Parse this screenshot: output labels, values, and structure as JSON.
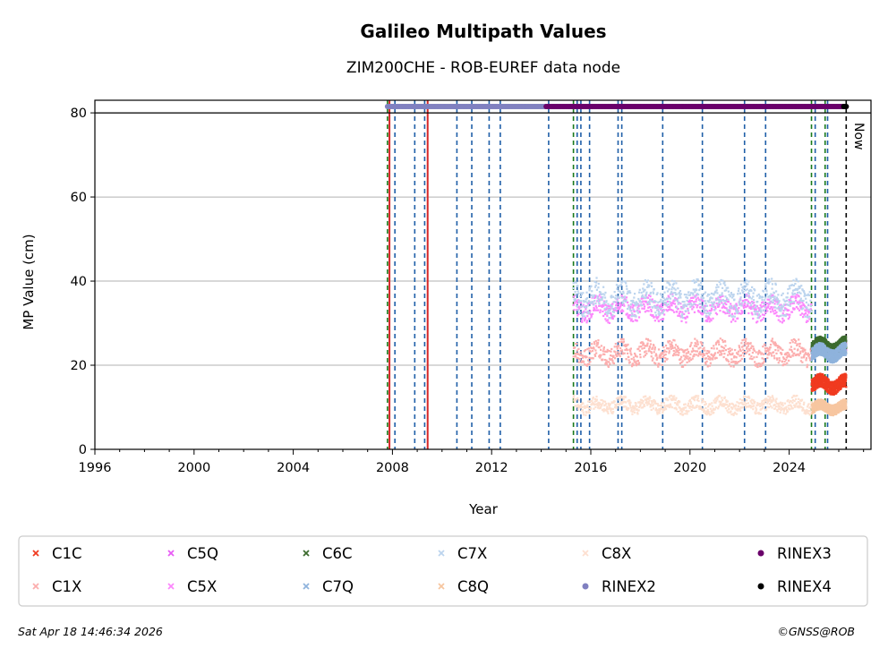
{
  "chart_data": {
    "type": "scatter",
    "title": "Galileo Multipath Values",
    "subtitle": "ZIM200CHE - ROB-EUREF data node",
    "xlabel": "Year",
    "ylabel": "MP Value (cm)",
    "xlim": [
      1996,
      2027.3
    ],
    "ylim": [
      0,
      83
    ],
    "x_ticks": [
      1996,
      2000,
      2004,
      2008,
      2012,
      2016,
      2020,
      2024
    ],
    "y_ticks": [
      0,
      20,
      40,
      60,
      80
    ],
    "grid": "y-major",
    "now_label": "Now",
    "now_year": 2026.3,
    "series": [
      {
        "name": "C1C",
        "marker": "x",
        "color": "#f03b20",
        "x_range": [
          2024.9,
          2026.3
        ],
        "mean": 15.5,
        "spread": 1.6
      },
      {
        "name": "C1X",
        "marker": "x",
        "color": "#fcaeae",
        "x_range": [
          2015.3,
          2024.9
        ],
        "mean": 23.0,
        "spread": 2.2
      },
      {
        "name": "C5Q",
        "marker": "x",
        "color": "#e85cf5",
        "x_range": [
          2024.9,
          2026.3
        ],
        "mean": 24.0,
        "spread": 1.2
      },
      {
        "name": "C5X",
        "marker": "x",
        "color": "#fc87fc",
        "x_range": [
          2015.3,
          2024.9
        ],
        "mean": 33.5,
        "spread": 2.2
      },
      {
        "name": "C6C",
        "marker": "x",
        "color": "#3c6b2e",
        "x_range": [
          2024.9,
          2026.3
        ],
        "mean": 24.5,
        "spread": 1.5
      },
      {
        "name": "C7Q",
        "marker": "x",
        "color": "#8fb3dc",
        "x_range": [
          2024.9,
          2026.3
        ],
        "mean": 23.0,
        "spread": 1.5
      },
      {
        "name": "C7X",
        "marker": "x",
        "color": "#bcd4ee",
        "x_range": [
          2015.3,
          2024.9
        ],
        "mean": 36.0,
        "spread": 3.0
      },
      {
        "name": "C8Q",
        "marker": "x",
        "color": "#f7c6a0",
        "x_range": [
          2024.9,
          2026.3
        ],
        "mean": 10.0,
        "spread": 1.2
      },
      {
        "name": "C8X",
        "marker": "x",
        "color": "#fde0d0",
        "x_range": [
          2015.3,
          2024.9
        ],
        "mean": 10.5,
        "spread": 1.5
      },
      {
        "name": "RINEX2",
        "marker": "o",
        "color": "#8080c0",
        "x_range": [
          2007.8,
          2014.2
        ],
        "y": 81.5
      },
      {
        "name": "RINEX3",
        "marker": "o",
        "color": "#6a006a",
        "x_range": [
          2014.2,
          2026.3
        ],
        "y": 81.5
      },
      {
        "name": "RINEX4",
        "marker": "o",
        "color": "#000000",
        "x_range": [
          2026.2,
          2026.3
        ],
        "y": 81.5
      }
    ],
    "hline": {
      "y": 80,
      "color": "#000000"
    },
    "events": [
      {
        "x": 2007.8,
        "color": "#1a7a1a",
        "style": "dashed"
      },
      {
        "x": 2007.88,
        "color": "#d62728",
        "style": "solid"
      },
      {
        "x": 2008.1,
        "color": "#1f5fa8",
        "style": "dashed"
      },
      {
        "x": 2008.9,
        "color": "#1f5fa8",
        "style": "dashed"
      },
      {
        "x": 2009.3,
        "color": "#1f5fa8",
        "style": "dashed"
      },
      {
        "x": 2009.42,
        "color": "#d62728",
        "style": "solid"
      },
      {
        "x": 2010.6,
        "color": "#1f5fa8",
        "style": "dashed"
      },
      {
        "x": 2011.2,
        "color": "#1f5fa8",
        "style": "dashed"
      },
      {
        "x": 2011.9,
        "color": "#1f5fa8",
        "style": "dashed"
      },
      {
        "x": 2012.35,
        "color": "#1f5fa8",
        "style": "dashed"
      },
      {
        "x": 2014.3,
        "color": "#1f5fa8",
        "style": "dashed"
      },
      {
        "x": 2015.3,
        "color": "#1a7a1a",
        "style": "dashed"
      },
      {
        "x": 2015.45,
        "color": "#1f5fa8",
        "style": "dashed"
      },
      {
        "x": 2015.6,
        "color": "#1f5fa8",
        "style": "dashed"
      },
      {
        "x": 2015.95,
        "color": "#1f5fa8",
        "style": "dashed"
      },
      {
        "x": 2017.1,
        "color": "#1f5fa8",
        "style": "dashed"
      },
      {
        "x": 2017.25,
        "color": "#1f5fa8",
        "style": "dashed"
      },
      {
        "x": 2018.9,
        "color": "#1f5fa8",
        "style": "dashed"
      },
      {
        "x": 2020.5,
        "color": "#1f5fa8",
        "style": "dashed"
      },
      {
        "x": 2022.2,
        "color": "#1f5fa8",
        "style": "dashed"
      },
      {
        "x": 2023.05,
        "color": "#1f5fa8",
        "style": "dashed"
      },
      {
        "x": 2024.9,
        "color": "#1a7a1a",
        "style": "dashed"
      },
      {
        "x": 2025.05,
        "color": "#1f5fa8",
        "style": "dashed"
      },
      {
        "x": 2025.45,
        "color": "#1a7a1a",
        "style": "dashed"
      },
      {
        "x": 2025.55,
        "color": "#1f5fa8",
        "style": "dashed"
      },
      {
        "x": 2026.3,
        "color": "#000000",
        "style": "dashed"
      }
    ],
    "legend_placement": "bottom"
  },
  "footer": {
    "timestamp": "Sat Apr 18 14:46:34 2026",
    "copyright": "©GNSS@ROB"
  }
}
